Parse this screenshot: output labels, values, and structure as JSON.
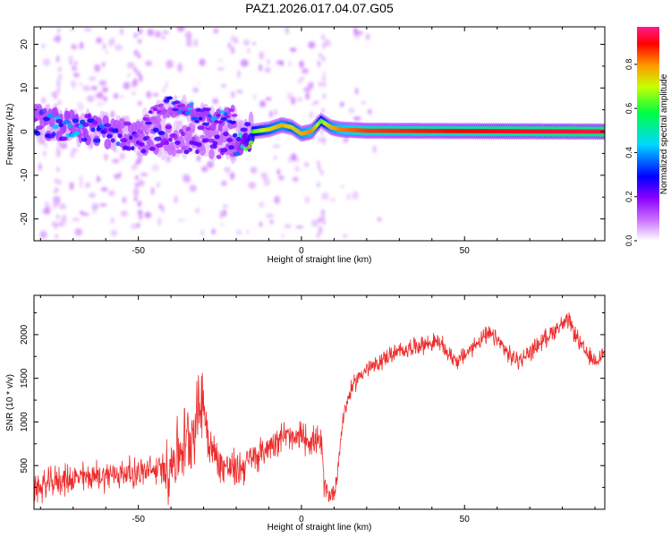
{
  "figure_title": "PAZ1.2026.017.04.07.G05",
  "chart_data": [
    {
      "type": "heatmap",
      "title": "PAZ1.2026.017.04.07.G05",
      "xlabel": "Height of straight line (km)",
      "ylabel": "Frequency (Hz)",
      "xlim": [
        -82,
        93
      ],
      "ylim": [
        -25,
        24
      ],
      "x_ticks": [
        -50,
        0,
        50
      ],
      "y_ticks": [
        -20,
        -10,
        0,
        10,
        20
      ],
      "x_tick_labels": [
        "-50",
        "0",
        "50"
      ],
      "y_tick_labels": [
        "-20",
        "-10",
        "0",
        "10",
        "20"
      ],
      "colorbar": {
        "label": "Normalized spectral amplitude",
        "range": [
          0,
          0.97
        ],
        "ticks": [
          0.0,
          0.2,
          0.4,
          0.6,
          0.8
        ],
        "tick_labels": [
          "0.0",
          "0.2",
          "0.4",
          "0.6",
          "0.8"
        ],
        "colormap": [
          "#ffffff",
          "#c86eff",
          "#8a00ff",
          "#0000ff",
          "#00d8ff",
          "#00ff40",
          "#c8ff00",
          "#ff9900",
          "#ff0000",
          "#ff1a8c"
        ]
      },
      "ridge": {
        "description": "main spectral ridge (frequency vs height)",
        "points": [
          [
            -82,
            2.5
          ],
          [
            -75,
            1.5
          ],
          [
            -65,
            0.5
          ],
          [
            -55,
            -0.5
          ],
          [
            -50,
            -1.5
          ],
          [
            -45,
            -1.5
          ],
          [
            -40,
            -2
          ],
          [
            -35,
            -2
          ],
          [
            -30,
            -1.5
          ],
          [
            -25,
            -3
          ],
          [
            -20,
            -3
          ],
          [
            -15,
            0
          ],
          [
            -10,
            0.5
          ],
          [
            -6,
            1.5
          ],
          [
            -3,
            1
          ],
          [
            0,
            -0.5
          ],
          [
            3,
            0
          ],
          [
            6,
            2.5
          ],
          [
            9,
            1
          ],
          [
            12,
            0.5
          ],
          [
            20,
            0.2
          ],
          [
            93,
            0
          ]
        ],
        "amplitude": [
          0.25,
          0.3,
          0.3,
          0.25,
          0.25,
          0.25,
          0.2,
          0.2,
          0.2,
          0.2,
          0.25,
          0.6,
          0.7,
          0.75,
          0.7,
          0.75,
          0.8,
          0.6,
          0.75,
          0.8,
          0.85,
          0.95
        ]
      },
      "secondary_ridge": {
        "description": "upper branch feature",
        "points": [
          [
            -48,
            2.5
          ],
          [
            -40,
            6
          ],
          [
            -35,
            5
          ],
          [
            -30,
            3.5
          ],
          [
            -25,
            2.5
          ],
          [
            -20,
            3.5
          ]
        ],
        "amplitude": [
          0.2,
          0.25,
          0.3,
          0.3,
          0.3,
          0.25
        ]
      }
    },
    {
      "type": "line",
      "xlabel": "Height of straight line (km)",
      "ylabel": "SNR (10 * v/v)",
      "xlim": [
        -82,
        93
      ],
      "ylim": [
        0,
        2450
      ],
      "x_ticks": [
        -50,
        0,
        50
      ],
      "y_ticks": [
        500,
        1000,
        1500,
        2000
      ],
      "x_tick_labels": [
        "-50",
        "0",
        "50"
      ],
      "y_tick_labels": [
        "500",
        "1000",
        "1500",
        "2000"
      ],
      "color": "#ee2b2b",
      "series": [
        {
          "name": "SNR",
          "x": [
            -82,
            -78,
            -75,
            -70,
            -65,
            -60,
            -55,
            -50,
            -45,
            -42,
            -40,
            -38,
            -35,
            -33,
            -31,
            -30,
            -29,
            -27,
            -25,
            -22,
            -20,
            -18,
            -15,
            -12,
            -10,
            -8,
            -5,
            -2,
            0,
            2,
            4,
            6,
            7,
            8,
            9,
            10,
            11,
            12,
            13,
            15,
            18,
            20,
            23,
            26,
            30,
            33,
            36,
            39,
            42,
            45,
            48,
            51,
            55,
            58,
            61,
            64,
            67,
            70,
            73,
            76,
            79,
            82,
            84,
            86,
            88,
            90,
            93
          ],
          "values": [
            230,
            280,
            330,
            350,
            370,
            390,
            410,
            420,
            440,
            470,
            520,
            650,
            800,
            950,
            1200,
            1250,
            900,
            650,
            520,
            470,
            450,
            500,
            580,
            650,
            720,
            800,
            850,
            780,
            850,
            800,
            780,
            750,
            300,
            180,
            170,
            200,
            400,
            800,
            1100,
            1350,
            1550,
            1600,
            1650,
            1750,
            1800,
            1850,
            1880,
            1900,
            1920,
            1780,
            1700,
            1800,
            1950,
            2000,
            1900,
            1750,
            1700,
            1800,
            1900,
            2000,
            2100,
            2150,
            2000,
            1850,
            1750,
            1700,
            1800
          ]
        }
      ]
    }
  ]
}
